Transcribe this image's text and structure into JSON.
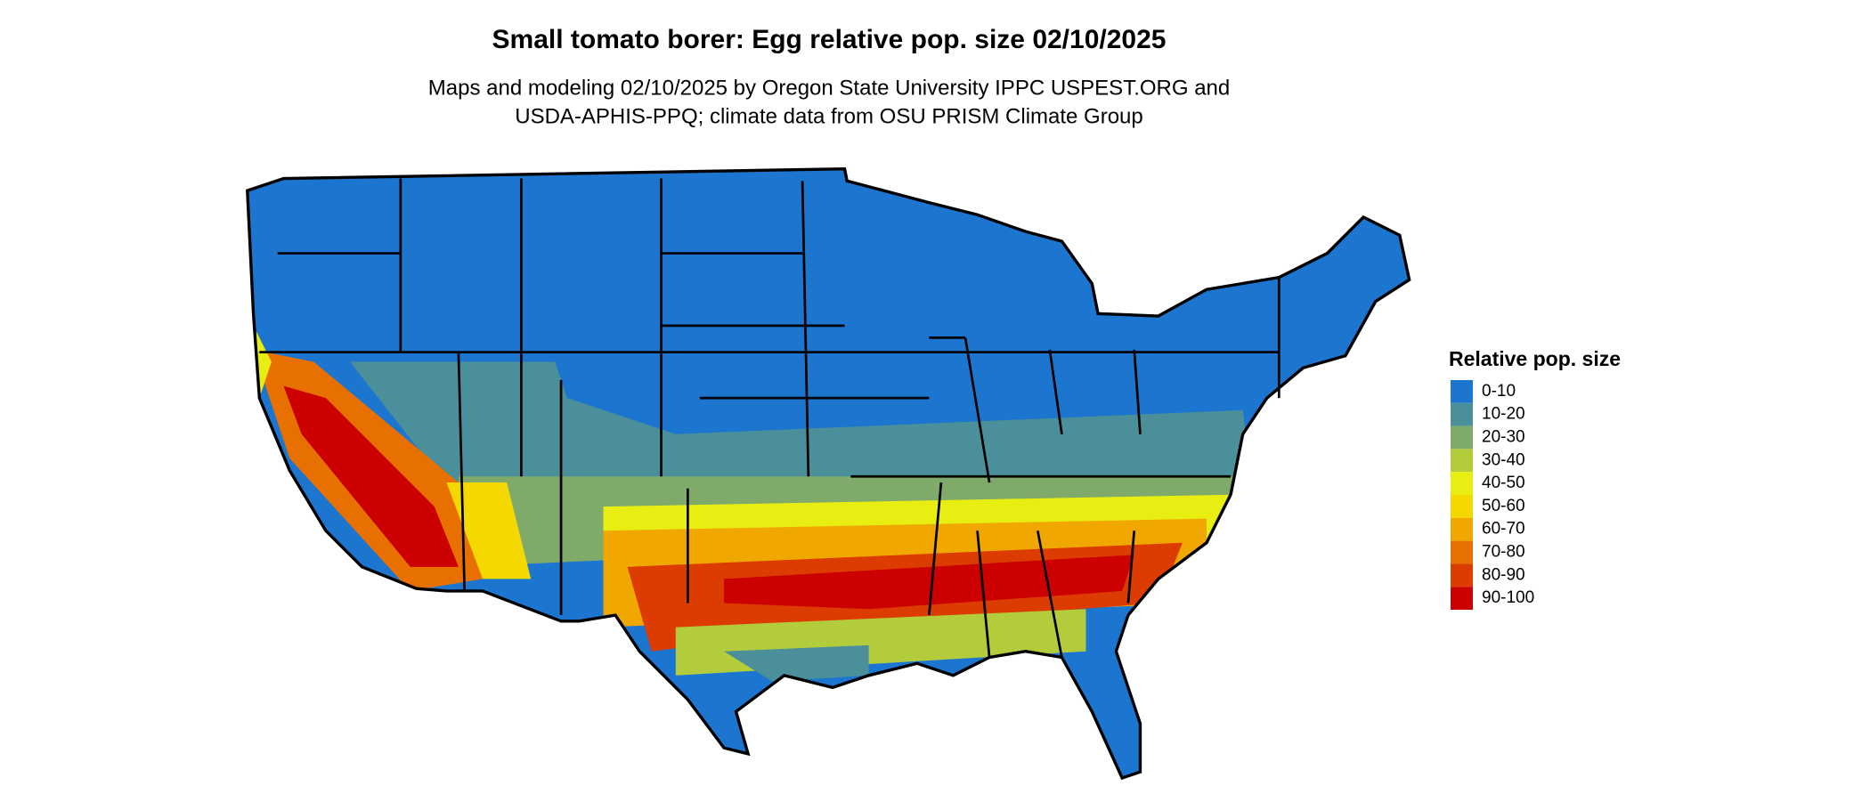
{
  "title": "Small tomato borer: Egg relative pop. size 02/10/2025",
  "subtitle": [
    "Maps and modeling 02/10/2025 by Oregon State University IPPC USPEST.ORG and",
    "USDA-APHIS-PPQ; climate data from OSU PRISM Climate Group"
  ],
  "legend": {
    "title": "Relative pop. size",
    "items": [
      {
        "label": "0-10",
        "color": "#1c75cf"
      },
      {
        "label": "10-20",
        "color": "#4a8f99"
      },
      {
        "label": "20-30",
        "color": "#7faa6a"
      },
      {
        "label": "30-40",
        "color": "#b2cc3c"
      },
      {
        "label": "40-50",
        "color": "#e8ee12"
      },
      {
        "label": "50-60",
        "color": "#f5d800"
      },
      {
        "label": "60-70",
        "color": "#f0a800"
      },
      {
        "label": "70-80",
        "color": "#e87000"
      },
      {
        "label": "80-90",
        "color": "#dd3c00"
      },
      {
        "label": "90-100",
        "color": "#cc0000"
      }
    ]
  }
}
